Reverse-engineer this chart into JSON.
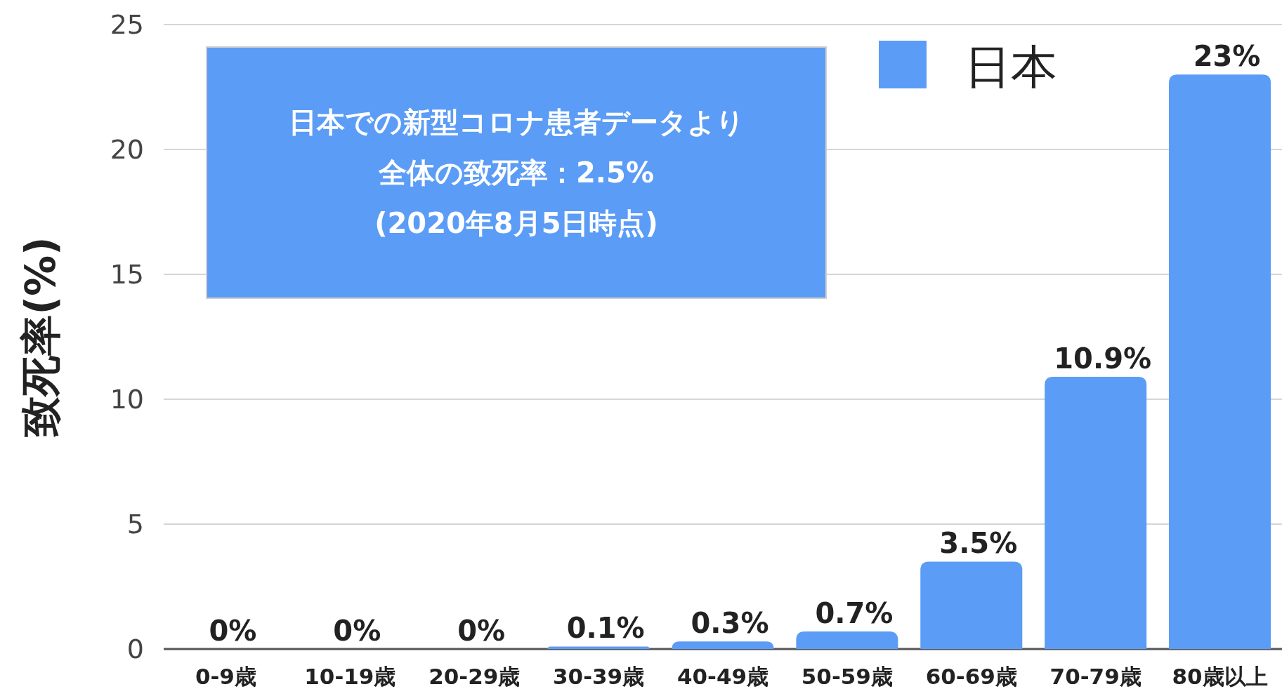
{
  "chart_data": {
    "type": "bar",
    "ylabel": "致死率(%)",
    "categories": [
      "0-9歳",
      "10-19歳",
      "20-29歳",
      "30-39歳",
      "40-49歳",
      "50-59歳",
      "60-69歳",
      "70-79歳",
      "80歳以上"
    ],
    "series": [
      {
        "name": "日本",
        "color": "#5b9cf6",
        "values": [
          0,
          0,
          0,
          0.1,
          0.3,
          0.7,
          3.5,
          10.9,
          23
        ],
        "value_labels": [
          "0%",
          "0%",
          "0%",
          "0.1%",
          "0.3%",
          "0.7%",
          "3.5%",
          "10.9%",
          "23%"
        ]
      }
    ],
    "ylim": [
      0,
      25
    ],
    "yticks": [
      0,
      5,
      10,
      15,
      20,
      25
    ],
    "grid": "y",
    "legend": "top right",
    "annotations": [
      "日本での新型コロナ患者データより",
      "全体の致死率：2.5%",
      "(2020年8月5日時点)"
    ]
  }
}
